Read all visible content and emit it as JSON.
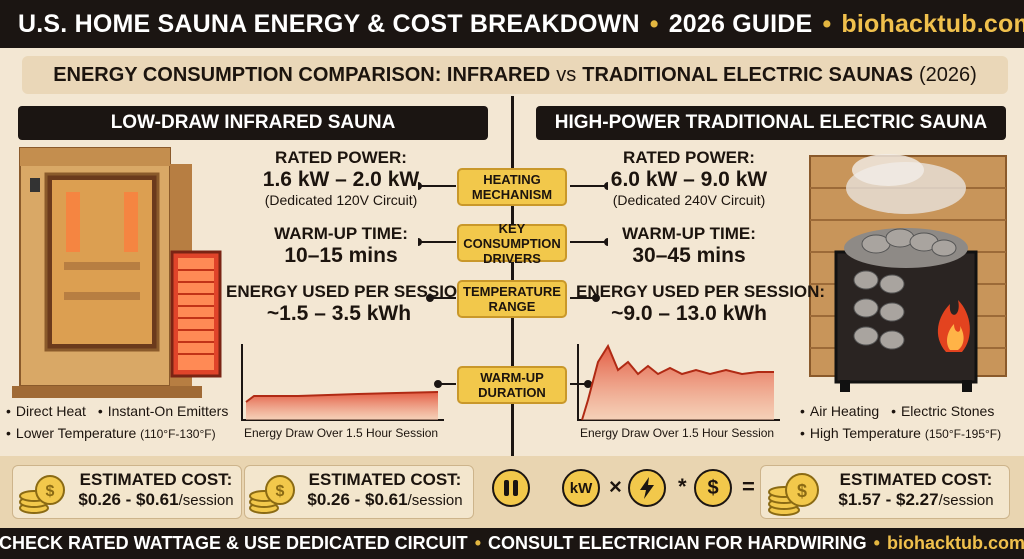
{
  "header": {
    "title": "U.S. HOME SAUNA ENERGY & COST BREAKDOWN",
    "separator": "•",
    "guide": "2026 GUIDE",
    "site": "biohacktub.com"
  },
  "subtitle": {
    "part1": "ENERGY CONSUMPTION COMPARISON: INFRARED",
    "vs": "vs",
    "part2": "TRADITIONAL ELECTRIC SAUNAS",
    "year": "(2026)"
  },
  "left": {
    "pill": "LOW-DRAW INFRARED SAUNA",
    "rated_label": "RATED POWER:",
    "rated_value": "1.6 kW – 2.0 kW",
    "rated_note": "(Dedicated 120V Circuit)",
    "warm_label": "WARM-UP TIME:",
    "warm_value": "10–15 mins",
    "energy_label": "ENERGY USED PER SESSION:",
    "energy_value": "~1.5 – 3.5 kWh",
    "chart_caption": "Energy Draw Over 1.5 Hour Session",
    "bullet1": "Direct Heat",
    "bullet2": "Instant-On Emitters",
    "bullet3": "Lower Temperature",
    "bullet3_range": "(110°F-130°F)"
  },
  "right": {
    "pill": "HIGH-POWER TRADITIONAL ELECTRIC SAUNA",
    "rated_label": "RATED POWER:",
    "rated_value": "6.0 kW – 9.0 kW",
    "rated_note": "(Dedicated 240V Circuit)",
    "warm_label": "WARM-UP TIME:",
    "warm_value": "30–45 mins",
    "energy_label": "ENERGY USED PER SESSION:",
    "energy_value": "~9.0 – 13.0 kWh",
    "chart_caption": "Energy Draw Over 1.5 Hour Session",
    "bullet1": "Air Heating",
    "bullet2": "Electric Stones",
    "bullet3": "High Temperature",
    "bullet3_range": "(150°F-195°F)"
  },
  "center": {
    "heating": "HEATING MECHANISM",
    "drivers": "KEY CONSUMPTION DRIVERS",
    "temperature": "TEMPERATURE RANGE",
    "duration": "WARM-UP DURATION"
  },
  "costs": {
    "label": "ESTIMATED COST:",
    "left1_value": "$0.26 - $0.61",
    "left2_value": "$0.26 - $0.61",
    "right_value": "$1.57 - $2.27",
    "unit": "/session",
    "kw": "kW",
    "dollar": "$",
    "times": "×",
    "star": "*",
    "equals": "="
  },
  "footer": {
    "part1": "CHECK RATED WATTAGE & USE DEDICATED CIRCUIT",
    "separator": "•",
    "part2": "CONSULT ELECTRICIAN FOR HARDWIRING",
    "site": "biohacktub.com"
  },
  "colors": {
    "dark": "#1b1512",
    "gold": "#f2c84b",
    "cream": "#f3e7d3",
    "heat_red": "#e0442a"
  },
  "icons": [
    "coin-stack-icon",
    "plug-icon",
    "lightning-icon",
    "dollar-icon",
    "flame-icon"
  ]
}
